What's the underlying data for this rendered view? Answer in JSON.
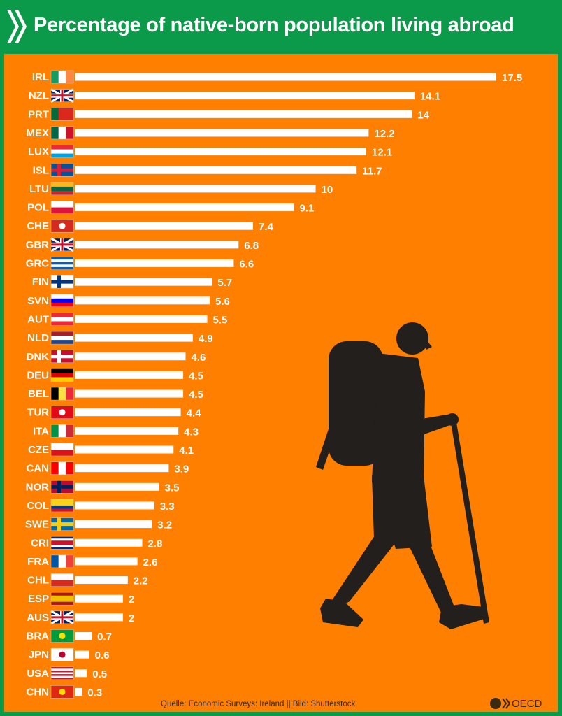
{
  "header": {
    "title": "Percentage of native-born population living abroad"
  },
  "footer": {
    "source": "Quelle: Economic Surveys: Ireland || Bild: Shutterstock",
    "logo": "OECD"
  },
  "colors": {
    "header_bg": "#0a9a4a",
    "panel_bg": "#ff7f00",
    "bar": "#ffffff",
    "silhouette": "#231f1c"
  },
  "chart_data": {
    "type": "bar",
    "orientation": "horizontal",
    "title": "Percentage of native-born population living abroad",
    "xlabel": "",
    "ylabel": "",
    "xlim": [
      0,
      17.5
    ],
    "grid": false,
    "categories": [
      "IRL",
      "NZL",
      "PRT",
      "MEX",
      "LUX",
      "ISL",
      "LTU",
      "POL",
      "CHE",
      "GBR",
      "GRC",
      "FIN",
      "SVN",
      "AUT",
      "NLD",
      "DNK",
      "DEU",
      "BEL",
      "TUR",
      "ITA",
      "CZE",
      "CAN",
      "NOR",
      "COL",
      "SWE",
      "CRI",
      "FRA",
      "CHL",
      "ESP",
      "AUS",
      "BRA",
      "JPN",
      "USA",
      "CHN"
    ],
    "values": [
      17.5,
      14.1,
      14,
      12.2,
      12.1,
      11.7,
      10,
      9.1,
      7.4,
      6.8,
      6.6,
      5.7,
      5.6,
      5.5,
      4.9,
      4.6,
      4.5,
      4.5,
      4.4,
      4.3,
      4.1,
      3.9,
      3.5,
      3.3,
      3.2,
      2.8,
      2.6,
      2.2,
      2,
      2,
      0.7,
      0.6,
      0.5,
      0.3
    ],
    "value_labels": [
      "17.5",
      "14.1",
      "14",
      "12.2",
      "12.1",
      "11.7",
      "10",
      "9.1",
      "7.4",
      "6.8",
      "6.6",
      "5.7",
      "5.6",
      "5.5",
      "4.9",
      "4.6",
      "4.5",
      "4.5",
      "4.4",
      "4.3",
      "4.1",
      "3.9",
      "3.5",
      "3.3",
      "3.2",
      "2.8",
      "2.6",
      "2.2",
      "2",
      "2",
      "0.7",
      "0.6",
      "0.5",
      "0.3"
    ],
    "flags": {
      "IRL": [
        "v",
        "#169b62",
        "#ffffff",
        "#ff883e"
      ],
      "NZL": [
        "s",
        "#012169",
        "#cc142b"
      ],
      "PRT": [
        "v",
        "#046a38",
        "#da291c",
        "#da291c"
      ],
      "MEX": [
        "v",
        "#006847",
        "#ffffff",
        "#ce1126"
      ],
      "LUX": [
        "h",
        "#ed2939",
        "#ffffff",
        "#00a1de"
      ],
      "ISL": [
        "c",
        "#02529c",
        "#dc1e35"
      ],
      "LTU": [
        "h",
        "#fdb913",
        "#006a44",
        "#c1272d"
      ],
      "POL": [
        "h",
        "#ffffff",
        "#dc143c"
      ],
      "CHE": [
        "x",
        "#d52b1e",
        "#ffffff"
      ],
      "GBR": [
        "s",
        "#012169",
        "#c8102e"
      ],
      "GRC": [
        "h",
        "#0d5eaf",
        "#ffffff",
        "#0d5eaf",
        "#ffffff",
        "#0d5eaf"
      ],
      "FIN": [
        "c",
        "#ffffff",
        "#003580"
      ],
      "SVN": [
        "h",
        "#ffffff",
        "#0000ff",
        "#ff0000"
      ],
      "AUT": [
        "h",
        "#ed2939",
        "#ffffff",
        "#ed2939"
      ],
      "NLD": [
        "h",
        "#ae1c28",
        "#ffffff",
        "#21468b"
      ],
      "DNK": [
        "c",
        "#c8102e",
        "#ffffff"
      ],
      "DEU": [
        "h",
        "#000000",
        "#dd0000",
        "#ffce00"
      ],
      "BEL": [
        "v",
        "#000000",
        "#fae042",
        "#ed2939"
      ],
      "TUR": [
        "x",
        "#e30a17",
        "#ffffff"
      ],
      "ITA": [
        "v",
        "#009246",
        "#ffffff",
        "#ce2b37"
      ],
      "CZE": [
        "h",
        "#ffffff",
        "#d7141a"
      ],
      "CAN": [
        "v",
        "#ff0000",
        "#ffffff",
        "#ff0000"
      ],
      "NOR": [
        "c",
        "#ba0c2f",
        "#00205b"
      ],
      "COL": [
        "h",
        "#fcd116",
        "#fcd116",
        "#003893",
        "#ce1126"
      ],
      "SWE": [
        "c",
        "#006aa7",
        "#fecc00"
      ],
      "CRI": [
        "h",
        "#002b7f",
        "#ffffff",
        "#ce1126",
        "#ce1126",
        "#ffffff",
        "#002b7f"
      ],
      "FRA": [
        "v",
        "#0055a4",
        "#ffffff",
        "#ef4135"
      ],
      "CHL": [
        "h",
        "#ffffff",
        "#d52b1e"
      ],
      "ESP": [
        "h",
        "#aa151b",
        "#f1bf00",
        "#f1bf00",
        "#aa151b"
      ],
      "AUS": [
        "s",
        "#012169",
        "#cc142b"
      ],
      "BRA": [
        "x",
        "#009c3b",
        "#ffdf00"
      ],
      "JPN": [
        "x",
        "#ffffff",
        "#bc002d"
      ],
      "USA": [
        "h",
        "#b22234",
        "#ffffff",
        "#b22234",
        "#ffffff",
        "#b22234",
        "#ffffff",
        "#b22234"
      ],
      "CHN": [
        "x",
        "#de2910",
        "#ffde00"
      ]
    }
  }
}
